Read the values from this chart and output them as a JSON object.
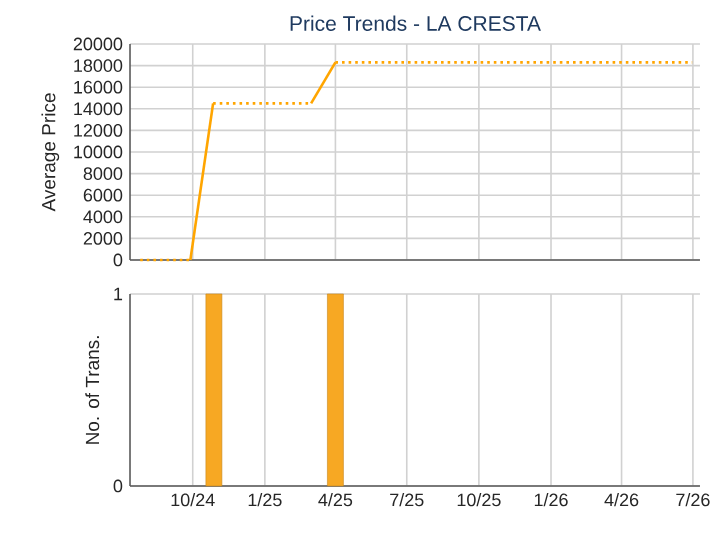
{
  "chart_data": [
    {
      "type": "line",
      "title": "Price Trends - LA CRESTA",
      "ylabel": "Average Price",
      "series": [
        {
          "color": "#ffa500",
          "line_style": "dotted",
          "x": [
            "2024-07-26",
            "2024-09-28"
          ],
          "values": [
            0,
            0
          ]
        },
        {
          "color": "#ffa500",
          "line_style": "solid",
          "x": [
            "2024-09-28",
            "2024-10-27"
          ],
          "values": [
            0,
            14500
          ]
        },
        {
          "color": "#ffa500",
          "line_style": "dotted",
          "x": [
            "2024-10-27",
            "2025-03-01"
          ],
          "values": [
            14500,
            14500
          ]
        },
        {
          "color": "#ffa500",
          "line_style": "solid",
          "x": [
            "2025-03-01",
            "2025-04-01"
          ],
          "values": [
            14500,
            18300
          ]
        },
        {
          "color": "#ffa500",
          "line_style": "dotted",
          "x": [
            "2025-04-01",
            "2026-06-30"
          ],
          "values": [
            18300,
            18300
          ]
        }
      ],
      "xlim": [
        "2024-07-13",
        "2026-07-10"
      ],
      "xticks": [
        {
          "value": "2024-10-01",
          "label": null
        },
        {
          "value": "2025-01-01",
          "label": null
        },
        {
          "value": "2025-04-01",
          "label": null
        },
        {
          "value": "2025-07-01",
          "label": null
        },
        {
          "value": "2025-10-01",
          "label": null
        },
        {
          "value": "2026-01-01",
          "label": null
        },
        {
          "value": "2026-04-01",
          "label": null
        },
        {
          "value": "2026-07-01",
          "label": null
        }
      ],
      "ylim": [
        0,
        20000
      ],
      "yticks": [
        0,
        2000,
        4000,
        6000,
        8000,
        10000,
        12000,
        14000,
        16000,
        18000,
        20000
      ],
      "grid": true,
      "tick_labels": "y"
    },
    {
      "type": "bar",
      "ylabel": "No. of Trans.",
      "x": [
        "2024-10-28",
        "2025-04-01"
      ],
      "values": [
        1,
        1
      ],
      "color": "#f7a823",
      "xlim": [
        "2024-07-13",
        "2026-07-10"
      ],
      "xticks": [
        {
          "value": "2024-10-01",
          "label": "10/24"
        },
        {
          "value": "2025-01-01",
          "label": "1/25"
        },
        {
          "value": "2025-04-01",
          "label": "4/25"
        },
        {
          "value": "2025-07-01",
          "label": "7/25"
        },
        {
          "value": "2025-10-01",
          "label": "10/25"
        },
        {
          "value": "2026-01-01",
          "label": "1/26"
        },
        {
          "value": "2026-04-01",
          "label": "4/26"
        },
        {
          "value": "2026-07-01",
          "label": "7/26"
        }
      ],
      "ylim": [
        0,
        1
      ],
      "yticks": [
        0,
        1
      ],
      "grid": true
    }
  ]
}
